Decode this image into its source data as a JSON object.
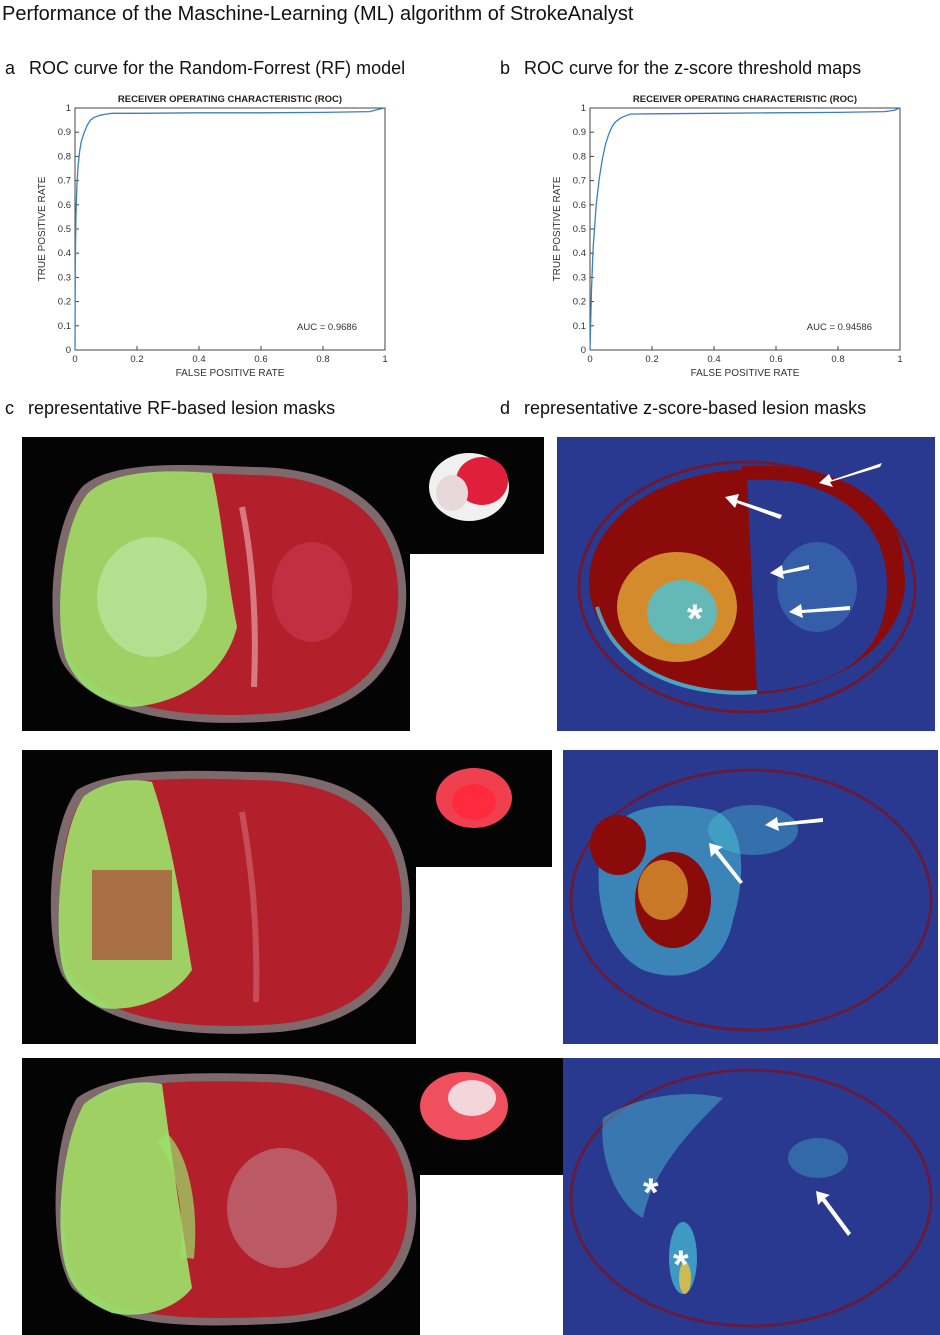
{
  "figure_title": "Performance of the Maschine-Learning (ML) algorithm of StrokeAnalyst",
  "panels": {
    "a": {
      "letter": "a",
      "caption": "ROC curve for the Random-Forrest (RF) model"
    },
    "b": {
      "letter": "b",
      "caption": "ROC curve for the z-score threshold maps"
    },
    "c": {
      "letter": "c",
      "caption": "representative RF-based lesion masks"
    },
    "d": {
      "letter": "d",
      "caption": "representative z-score-based lesion masks"
    }
  },
  "colors": {
    "roc_line": "#3a7fc1",
    "lesion_green": "#9be36a",
    "tissue_red": "#b3202c",
    "zmap_background": "#2a3990",
    "zmap_high": "#8b0a0a",
    "arrow": "#ffffff"
  },
  "icons": {
    "arrow": "white-arrow-icon",
    "asterisk": "white-asterisk-icon"
  },
  "chart_data": [
    {
      "type": "line",
      "title": "RECEIVER OPERATING CHARACTERISTIC (ROC)",
      "xlabel": "FALSE POSITIVE RATE",
      "ylabel": "TRUE POSITIVE RATE",
      "xlim": [
        0,
        1
      ],
      "ylim": [
        0,
        1
      ],
      "xticks": [
        "0",
        "0.2",
        "0.4",
        "0.6",
        "0.8",
        "1"
      ],
      "yticks": [
        "0",
        "0.1",
        "0.2",
        "0.3",
        "0.4",
        "0.5",
        "0.6",
        "0.7",
        "0.8",
        "0.9",
        "1"
      ],
      "grid": false,
      "annotation": "AUC = 0.9686",
      "series": [
        {
          "x": [
            0,
            0.001,
            0.003,
            0.006,
            0.01,
            0.015,
            0.02,
            0.03,
            0.04,
            0.05,
            0.06,
            0.08,
            0.1,
            0.12,
            0.2,
            0.4,
            0.6,
            0.8,
            0.95,
            0.98,
            1
          ],
          "y": [
            0,
            0.35,
            0.55,
            0.68,
            0.76,
            0.82,
            0.86,
            0.9,
            0.93,
            0.95,
            0.96,
            0.97,
            0.975,
            0.978,
            0.978,
            0.98,
            0.98,
            0.982,
            0.985,
            0.995,
            1
          ]
        }
      ]
    },
    {
      "type": "line",
      "title": "RECEIVER OPERATING CHARACTERISTIC (ROC)",
      "xlabel": "FALSE POSITIVE RATE",
      "ylabel": "TRUE POSITIVE RATE",
      "xlim": [
        0,
        1
      ],
      "ylim": [
        0,
        1
      ],
      "xticks": [
        "0",
        "0.2",
        "0.4",
        "0.6",
        "0.8",
        "1"
      ],
      "yticks": [
        "0",
        "0.1",
        "0.2",
        "0.3",
        "0.4",
        "0.5",
        "0.6",
        "0.7",
        "0.8",
        "0.9",
        "1"
      ],
      "grid": false,
      "annotation": "AUC = 0.94586",
      "series": [
        {
          "x": [
            0,
            0.002,
            0.005,
            0.01,
            0.02,
            0.03,
            0.04,
            0.05,
            0.06,
            0.07,
            0.08,
            0.1,
            0.12,
            0.13,
            0.2,
            0.4,
            0.6,
            0.8,
            0.95,
            0.98,
            1
          ],
          "y": [
            0,
            0.1,
            0.25,
            0.42,
            0.6,
            0.71,
            0.79,
            0.85,
            0.89,
            0.92,
            0.94,
            0.96,
            0.97,
            0.975,
            0.976,
            0.978,
            0.98,
            0.982,
            0.985,
            0.99,
            1
          ]
        }
      ]
    }
  ]
}
